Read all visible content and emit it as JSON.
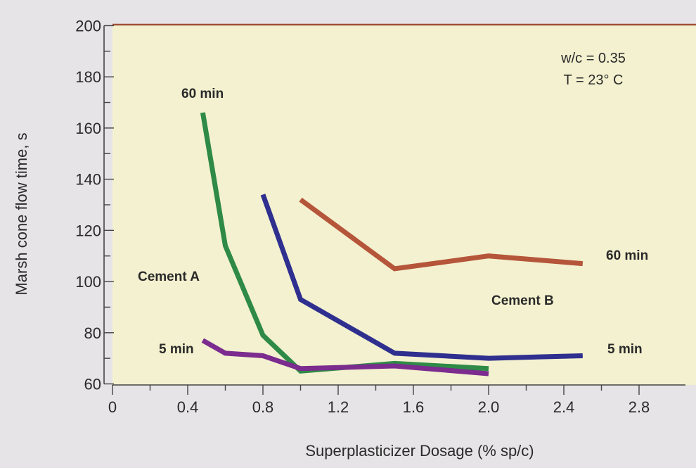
{
  "chart_data": {
    "type": "line",
    "xlabel": "Superplasticizer Dosage (% sp/c)",
    "ylabel": "Marsh cone flow time, s",
    "xlim": [
      0,
      2.8
    ],
    "ylim": [
      60,
      200
    ],
    "x_ticks": [
      "0",
      "0.4",
      "0.8",
      "1.2",
      "1.6",
      "2.0",
      "2.4",
      "2.8"
    ],
    "y_ticks": [
      "60",
      "80",
      "100",
      "120",
      "140",
      "160",
      "180",
      "200"
    ],
    "grid": false,
    "conditions": [
      "w/c = 0.35",
      "T = 23° C"
    ],
    "colors": {
      "cement_a_60": "#2e8a46",
      "cement_a_5": "#7b2c8e",
      "cement_b_60": "#b5553a",
      "cement_b_5": "#2f2f8f",
      "plot_bg": "#f3f1cf",
      "frame": "#a0523a"
    },
    "series": [
      {
        "group": "Cement A",
        "time": "60 min",
        "color": "#2e8a46",
        "x": [
          0.48,
          0.6,
          0.8,
          1.0,
          1.5,
          2.0
        ],
        "y": [
          166,
          114,
          79,
          65,
          68,
          66
        ]
      },
      {
        "group": "Cement A",
        "time": "5 min",
        "color": "#7b2c8e",
        "x": [
          0.48,
          0.6,
          0.8,
          1.0,
          1.5,
          2.0
        ],
        "y": [
          77,
          72,
          71,
          66,
          67,
          64
        ]
      },
      {
        "group": "Cement B",
        "time": "60 min",
        "color": "#b5553a",
        "x": [
          1.0,
          1.5,
          2.0,
          2.5
        ],
        "y": [
          132,
          105,
          110,
          107
        ]
      },
      {
        "group": "Cement B",
        "time": "5 min",
        "color": "#2f2f8f",
        "x": [
          0.8,
          1.0,
          1.5,
          2.0,
          2.5
        ],
        "y": [
          134,
          93,
          72,
          70,
          71
        ]
      }
    ],
    "annotations": {
      "cement_a": "Cement A",
      "cement_b": "Cement B",
      "a_60": "60 min",
      "a_5": "5 min",
      "b_60": "60 min",
      "b_5": "5 min"
    }
  }
}
